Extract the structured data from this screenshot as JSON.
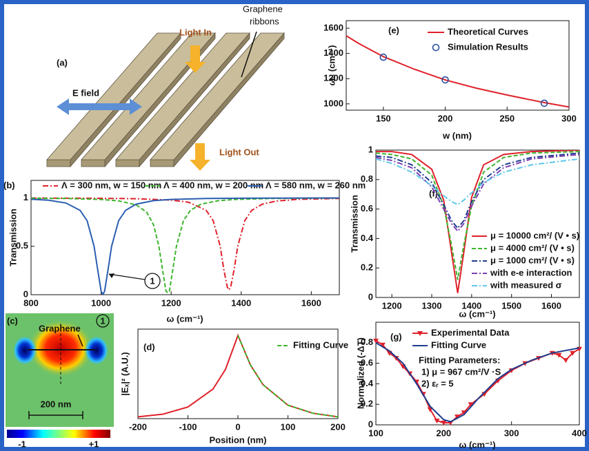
{
  "panel_a": {
    "label": "(a)",
    "light_in": "Light In",
    "ribbons": [
      "Graphene",
      "ribbons"
    ],
    "e_field": "E field",
    "light_out": "Light Out"
  },
  "panel_c": {
    "label": "(c)",
    "mode": "1",
    "graphene": "Graphene",
    "scale_bar": "200 nm",
    "colorbar_min": "-1",
    "colorbar_max": "+1"
  },
  "chart_data": [
    {
      "type": "line",
      "label": "(b)",
      "xlabel": "ω (cm⁻¹)",
      "ylabel": "Transmission",
      "annotation": "1",
      "xlim": [
        800,
        1680
      ],
      "xticks": [
        800,
        1000,
        1200,
        1400,
        1600
      ],
      "ylim": [
        0,
        1.18
      ],
      "yticks": [
        0,
        0.5,
        1
      ],
      "series": [
        {
          "name": "Λ = 300 nm, w = 150 nm",
          "color": "#e0202a",
          "linestyle": "dashdot",
          "x": [
            800,
            1000,
            1100,
            1200,
            1250,
            1300,
            1320,
            1340,
            1350,
            1360,
            1365,
            1370,
            1380,
            1390,
            1410,
            1430,
            1460,
            1500,
            1560,
            1680
          ],
          "values": [
            0.998,
            0.995,
            0.991,
            0.977,
            0.955,
            0.871,
            0.764,
            0.5,
            0.265,
            0.08,
            0.05,
            0.08,
            0.265,
            0.5,
            0.764,
            0.871,
            0.935,
            0.967,
            0.984,
            0.994
          ]
        },
        {
          "name": "Λ = 400 nm, w = 200 nm",
          "color": "#3cb52c",
          "linestyle": "dashed",
          "x": [
            800,
            900,
            1000,
            1050,
            1100,
            1130,
            1150,
            1165,
            1175,
            1185,
            1190,
            1195,
            1205,
            1215,
            1235,
            1255,
            1285,
            1335,
            1385,
            1485,
            1680
          ],
          "values": [
            0.996,
            0.993,
            0.983,
            0.969,
            0.928,
            0.852,
            0.719,
            0.5,
            0.265,
            0.038,
            0.02,
            0.038,
            0.265,
            0.5,
            0.764,
            0.871,
            0.935,
            0.971,
            0.984,
            0.993,
            0.997
          ]
        },
        {
          "name": "Λ = 580 nm, w = 260 nm",
          "color": "#2a5db0",
          "linestyle": "solid",
          "x": [
            800,
            850,
            900,
            940,
            960,
            980,
            990,
            1000,
            1005,
            1010,
            1020,
            1030,
            1050,
            1070,
            1100,
            1150,
            1200,
            1300,
            1400,
            1680
          ],
          "values": [
            0.985,
            0.975,
            0.946,
            0.871,
            0.764,
            0.5,
            0.265,
            0.038,
            0,
            0.038,
            0.265,
            0.5,
            0.764,
            0.871,
            0.935,
            0.971,
            0.984,
            0.993,
            0.996,
            0.999
          ]
        }
      ]
    },
    {
      "type": "line",
      "label": "(d)",
      "xlabel": "Position (nm)",
      "ylabel": "|Eₓ|² (A.U.)",
      "xlim": [
        -200,
        200
      ],
      "xticks": [
        -200,
        -100,
        0,
        100,
        200
      ],
      "ylim": [
        0,
        1
      ],
      "series": [
        {
          "color": "#e0202a",
          "linestyle": "solid",
          "x": [
            -200,
            -150,
            -100,
            -50,
            -25,
            0,
            25,
            50,
            100,
            150,
            200
          ],
          "values": [
            0.02,
            0.05,
            0.13,
            0.33,
            0.55,
            0.93,
            0.6,
            0.38,
            0.15,
            0.06,
            0.02
          ]
        },
        {
          "name": "Fitting Curve",
          "color": "#3cb52c",
          "linestyle": "dashed",
          "x": [
            0,
            25,
            50,
            100,
            150,
            200
          ],
          "values": [
            0.93,
            0.6,
            0.38,
            0.15,
            0.06,
            0.02
          ]
        }
      ]
    },
    {
      "type": "line",
      "label": "(e)",
      "xlabel": "w (nm)",
      "ylabel": "ω₀ (cm⁻¹)",
      "xlim": [
        120,
        300
      ],
      "xticks": [
        150,
        200,
        250,
        300
      ],
      "ylim": [
        950,
        1660
      ],
      "yticks": [
        1000,
        1200,
        1400,
        1600
      ],
      "series": [
        {
          "name": "Theoretical Curves",
          "color": "#e0202a",
          "linestyle": "solid",
          "x": [
            120,
            130,
            150,
            175,
            200,
            225,
            250,
            275,
            280,
            300
          ],
          "values": [
            1540,
            1480,
            1375,
            1275,
            1190,
            1125,
            1070,
            1020,
            1010,
            975
          ]
        },
        {
          "name": "Simulation Results",
          "color": "#2a4fa0",
          "linestyle": "none",
          "marker": "circle",
          "x": [
            150,
            200,
            280
          ],
          "values": [
            1370,
            1190,
            1005
          ]
        }
      ]
    },
    {
      "type": "line",
      "label": "(f)",
      "xlabel": "ω (cm⁻¹)",
      "ylabel": "Transmission",
      "xlim": [
        1160,
        1670
      ],
      "xticks": [
        1200,
        1300,
        1400,
        1500,
        1600
      ],
      "ylim": [
        0,
        1
      ],
      "yticks": [
        0,
        0.2,
        0.4,
        0.6,
        0.8,
        1
      ],
      "x": [
        1160,
        1200,
        1250,
        1300,
        1330,
        1350,
        1365,
        1380,
        1400,
        1430,
        1480,
        1550,
        1670
      ],
      "series": [
        {
          "name": "μ = 10000 cm²/ (V • s)",
          "color": "#e0202a",
          "linestyle": "solid",
          "values": [
            0.99,
            0.99,
            0.97,
            0.87,
            0.66,
            0.3,
            0.03,
            0.3,
            0.68,
            0.9,
            0.97,
            0.99,
            1.0
          ]
        },
        {
          "name": "μ = 4000 cm²/ (V • s)",
          "color": "#3cb52c",
          "linestyle": "dashed",
          "values": [
            0.98,
            0.97,
            0.94,
            0.83,
            0.62,
            0.35,
            0.12,
            0.35,
            0.62,
            0.85,
            0.95,
            0.98,
            0.99
          ]
        },
        {
          "name": "μ = 1000 cm²/ (V • s)",
          "color": "#1f3c8c",
          "linestyle": "dashdot",
          "values": [
            0.96,
            0.95,
            0.9,
            0.78,
            0.63,
            0.52,
            0.47,
            0.52,
            0.65,
            0.8,
            0.9,
            0.95,
            0.98
          ]
        },
        {
          "name": "with e-e interaction",
          "color": "#7a3fb0",
          "linestyle": "dashdot",
          "values": [
            0.95,
            0.93,
            0.88,
            0.75,
            0.6,
            0.5,
            0.45,
            0.5,
            0.62,
            0.77,
            0.88,
            0.94,
            0.97
          ]
        },
        {
          "name": "with measured σ",
          "color": "#5cc8e8",
          "linestyle": "dashdot",
          "values": [
            0.94,
            0.91,
            0.85,
            0.76,
            0.69,
            0.65,
            0.63,
            0.66,
            0.71,
            0.78,
            0.85,
            0.9,
            0.94
          ]
        }
      ]
    },
    {
      "type": "line",
      "label": "(g)",
      "xlabel": "ω (cm⁻¹)",
      "ylabel": "Normalized (-ΔT)",
      "notes": [
        "Fitting Parameters:",
        "1) μ = 967 cm²/V ·S",
        "2) εᵣ = 5"
      ],
      "xlim": [
        100,
        400
      ],
      "xticks": [
        100,
        200,
        300,
        400
      ],
      "ylim": [
        0,
        1
      ],
      "yticks": [
        0,
        0.2,
        0.4,
        0.6,
        0.8
      ],
      "series": [
        {
          "name": "Experimental Data",
          "color": "#e0202a",
          "linestyle": "solid",
          "marker": "triangle",
          "x": [
            100,
            110,
            120,
            130,
            140,
            150,
            160,
            170,
            180,
            190,
            200,
            210,
            220,
            230,
            240,
            260,
            280,
            300,
            320,
            340,
            360,
            370,
            380,
            390,
            400
          ],
          "values": [
            0.82,
            0.78,
            0.7,
            0.65,
            0.57,
            0.5,
            0.42,
            0.3,
            0.15,
            0.04,
            0.02,
            0.02,
            0.08,
            0.12,
            0.2,
            0.3,
            0.43,
            0.53,
            0.6,
            0.65,
            0.7,
            0.68,
            0.63,
            0.7,
            0.74
          ]
        },
        {
          "name": "Fitting Curve",
          "color": "#1f3c8c",
          "linestyle": "solid",
          "x": [
            100,
            120,
            140,
            160,
            180,
            200,
            210,
            230,
            250,
            280,
            300,
            330,
            360,
            400
          ],
          "values": [
            0.8,
            0.72,
            0.6,
            0.4,
            0.18,
            0.05,
            0.03,
            0.1,
            0.25,
            0.45,
            0.54,
            0.63,
            0.7,
            0.75
          ]
        }
      ]
    }
  ]
}
